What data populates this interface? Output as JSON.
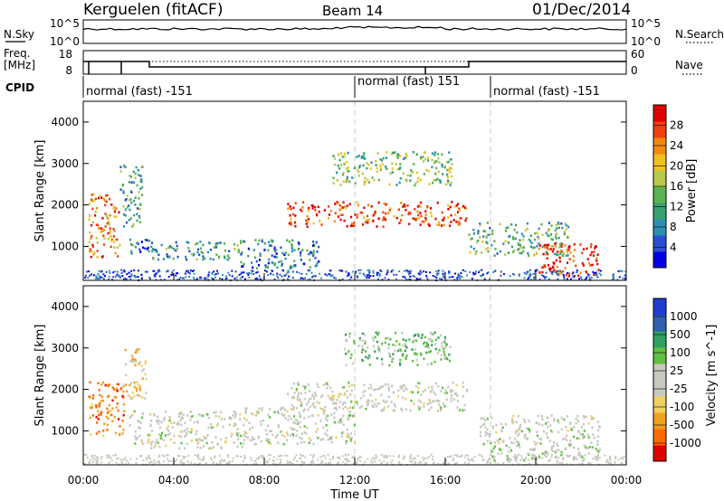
{
  "header": {
    "station": "Kerguelen (fitACF)",
    "beam": "Beam 14",
    "date": "01/Dec/2014"
  },
  "noise_panel": {
    "left_label": "N.Sky",
    "left_ticks": [
      "10^5",
      "10^0"
    ],
    "right_ticks": [
      "10^5",
      "10^0"
    ],
    "right_label": "N.Search"
  },
  "freq_panel": {
    "left_label_1": "Freq.",
    "left_label_2": "[MHz]",
    "left_ticks": [
      "18",
      "8"
    ],
    "right_ticks": [
      "60",
      "0"
    ],
    "right_label": "Nave"
  },
  "cpid_panel": {
    "label": "CPID",
    "segments": [
      {
        "start_hour": 0,
        "text": "normal (fast) -151"
      },
      {
        "start_hour": 12,
        "text": "normal (fast) 151"
      },
      {
        "start_hour": 18,
        "text": "normal (fast) -151"
      }
    ]
  },
  "chart_data": [
    {
      "type": "heatmap",
      "title": "",
      "xlabel": "",
      "ylabel": "Slant Range [km]",
      "xlim": [
        0,
        24
      ],
      "ylim": [
        180,
        4500
      ],
      "yticks": [
        "1000",
        "2000",
        "3000",
        "4000"
      ],
      "colorbar": {
        "label": "Power [dB]",
        "ticks": [
          "28",
          "24",
          "20",
          "16",
          "12",
          "8",
          "4"
        ],
        "range": [
          0,
          30
        ],
        "colors": [
          "#0000e0",
          "#2a4fd0",
          "#2f8fb0",
          "#3aa070",
          "#5ab450",
          "#b8c84a",
          "#f0c020",
          "#f08a10",
          "#f04010",
          "#e00000"
        ]
      },
      "echo_regions": [
        {
          "t0": 0.2,
          "t1": 1.6,
          "r0": 700,
          "r1": 2300,
          "level": 22
        },
        {
          "t0": 1.6,
          "t1": 2.6,
          "r0": 1500,
          "r1": 3000,
          "level": 10
        },
        {
          "t0": 2.0,
          "t1": 3.3,
          "r0": 800,
          "r1": 1200,
          "level": 6
        },
        {
          "t0": 3.0,
          "t1": 6.8,
          "r0": 700,
          "r1": 1150,
          "level": 10
        },
        {
          "t0": 6.8,
          "t1": 10.5,
          "r0": 500,
          "r1": 1200,
          "level": 8
        },
        {
          "t0": 9.0,
          "t1": 17.0,
          "r0": 1500,
          "r1": 2100,
          "level": 26
        },
        {
          "t0": 11.0,
          "t1": 16.3,
          "r0": 2500,
          "r1": 3300,
          "level": 14
        },
        {
          "t0": 17.0,
          "t1": 21.5,
          "r0": 800,
          "r1": 1600,
          "level": 12
        },
        {
          "t0": 20.0,
          "t1": 22.8,
          "r0": 300,
          "r1": 1100,
          "level": 28
        }
      ]
    },
    {
      "type": "heatmap",
      "title": "",
      "xlabel": "Time UT",
      "ylabel": "Slant Range [km]",
      "xlim": [
        0,
        24
      ],
      "ylim": [
        180,
        4500
      ],
      "xticks": [
        "00:00",
        "04:00",
        "08:00",
        "12:00",
        "16:00",
        "20:00",
        "00:00"
      ],
      "yticks": [
        "1000",
        "2000",
        "3000",
        "4000"
      ],
      "colorbar": {
        "label": "Velocity [m s^-1]",
        "ticks": [
          "1000",
          "500",
          "100",
          "25",
          "-25",
          "-100",
          "-500",
          "-1000"
        ],
        "range": [
          -1000,
          1000
        ],
        "colors": [
          "#e00000",
          "#ff6a00",
          "#f0a020",
          "#f0d060",
          "#c8c8c0",
          "#c8c8c0",
          "#60c040",
          "#30a060",
          "#3060b0",
          "#1e3ed0"
        ]
      },
      "echo_regions": [
        {
          "t0": 0.2,
          "t1": 1.8,
          "r0": 900,
          "r1": 2200,
          "value": -600
        },
        {
          "t0": 1.8,
          "t1": 2.8,
          "r0": 1800,
          "r1": 3000,
          "value": -300
        },
        {
          "t0": 2.0,
          "t1": 7.0,
          "r0": 600,
          "r1": 1500,
          "value": 0
        },
        {
          "t0": 7.0,
          "t1": 12.0,
          "r0": 700,
          "r1": 1600,
          "value": 0
        },
        {
          "t0": 9.0,
          "t1": 17.0,
          "r0": 1500,
          "r1": 2200,
          "value": 0
        },
        {
          "t0": 11.5,
          "t1": 16.2,
          "r0": 2600,
          "r1": 3400,
          "value": 300
        },
        {
          "t0": 17.5,
          "t1": 22.8,
          "r0": 700,
          "r1": 1400,
          "value": 0
        },
        {
          "t0": 18.0,
          "t1": 22.8,
          "r0": 300,
          "r1": 700,
          "value": 150
        }
      ]
    }
  ]
}
